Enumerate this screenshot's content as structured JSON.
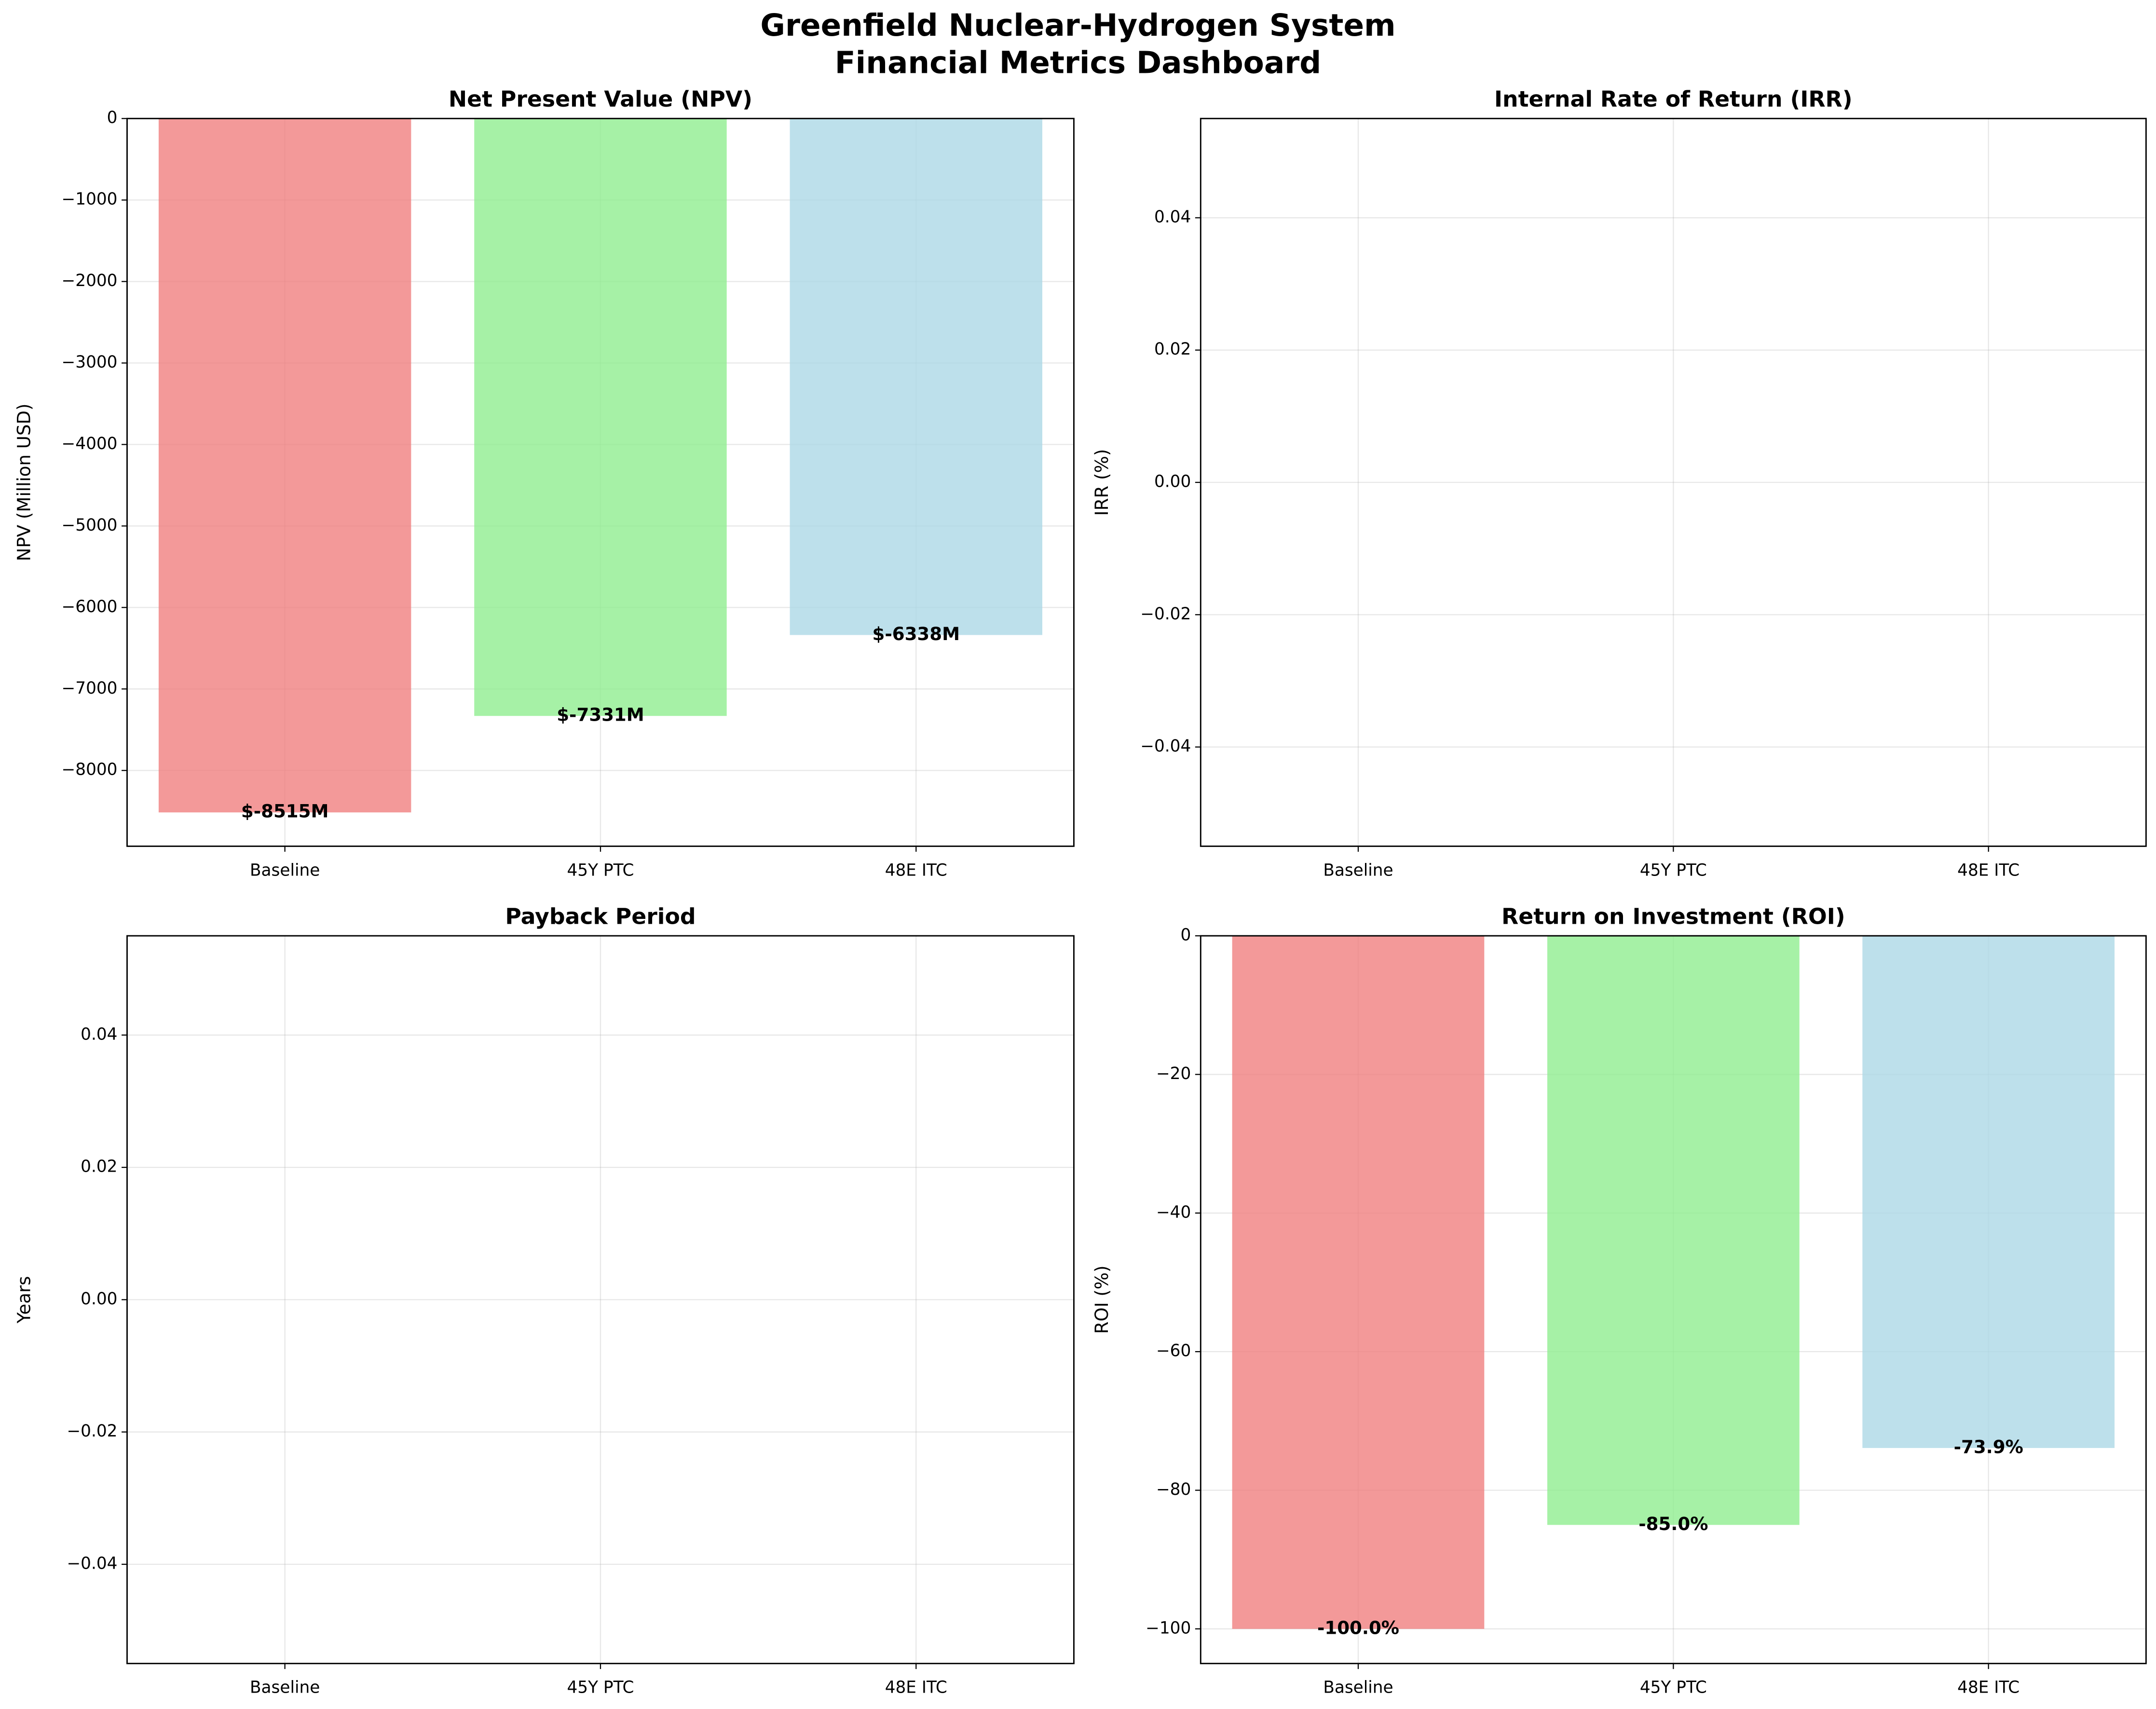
{
  "title": "Greenfield Nuclear-Hydrogen System",
  "subtitle": "Financial Metrics Dashboard",
  "chart_data": [
    {
      "type": "bar",
      "title": "Net Present Value (NPV)",
      "ylabel": "NPV (Million USD)",
      "categories": [
        "Baseline",
        "45Y PTC",
        "48E ITC"
      ],
      "values": [
        -8515,
        -7331,
        -6338
      ],
      "value_labels": [
        "$-8515M",
        "$-7331M",
        "$-6338M"
      ],
      "colors": [
        "#f08080",
        "#90ee90",
        "#add8e6"
      ],
      "ylim": [
        -8930,
        0
      ],
      "yticks": [
        0,
        {
          "value": -1000,
          "label": "−1000"
        },
        {
          "value": -2000,
          "label": "−2000"
        },
        {
          "value": -3000,
          "label": "−3000"
        },
        {
          "value": -4000,
          "label": "−4000"
        },
        {
          "value": -5000,
          "label": "−5000"
        },
        {
          "value": -6000,
          "label": "−6000"
        },
        {
          "value": -7000,
          "label": "−7000"
        },
        {
          "value": -8000,
          "label": "−8000"
        }
      ],
      "grid": true
    },
    {
      "type": "bar",
      "title": "Internal Rate of Return (IRR)",
      "ylabel": "IRR (%)",
      "categories": [
        "Baseline",
        "45Y PTC",
        "48E ITC"
      ],
      "ylim": [
        -0.055,
        0.055
      ],
      "yticks": [
        {
          "value": -0.04,
          "label": "−0.04"
        },
        {
          "value": -0.02,
          "label": "−0.02"
        },
        {
          "value": 0,
          "label": "0.00"
        },
        {
          "value": 0.02,
          "label": "0.02"
        },
        {
          "value": 0.04,
          "label": "0.04"
        }
      ],
      "grid": true
    },
    {
      "type": "bar",
      "title": "Payback Period",
      "ylabel": "Years",
      "categories": [
        "Baseline",
        "45Y PTC",
        "48E ITC"
      ],
      "ylim": [
        -0.055,
        0.055
      ],
      "yticks": [
        {
          "value": -0.04,
          "label": "−0.04"
        },
        {
          "value": -0.02,
          "label": "−0.02"
        },
        {
          "value": 0,
          "label": "0.00"
        },
        {
          "value": 0.02,
          "label": "0.02"
        },
        {
          "value": 0.04,
          "label": "0.04"
        }
      ],
      "grid": true
    },
    {
      "type": "bar",
      "title": "Return on Investment (ROI)",
      "ylabel": "ROI (%)",
      "categories": [
        "Baseline",
        "45Y PTC",
        "48E ITC"
      ],
      "values": [
        -100,
        -85,
        -73.9
      ],
      "value_labels": [
        "-100.0%",
        "-85.0%",
        "-73.9%"
      ],
      "colors": [
        "#f08080",
        "#90ee90",
        "#add8e6"
      ],
      "ylim": [
        -105,
        0
      ],
      "yticks": [
        0,
        {
          "value": -20,
          "label": "−20"
        },
        {
          "value": -40,
          "label": "−40"
        },
        {
          "value": -60,
          "label": "−60"
        },
        {
          "value": -80,
          "label": "−80"
        },
        {
          "value": -100,
          "label": "−100"
        }
      ],
      "grid": true
    }
  ]
}
